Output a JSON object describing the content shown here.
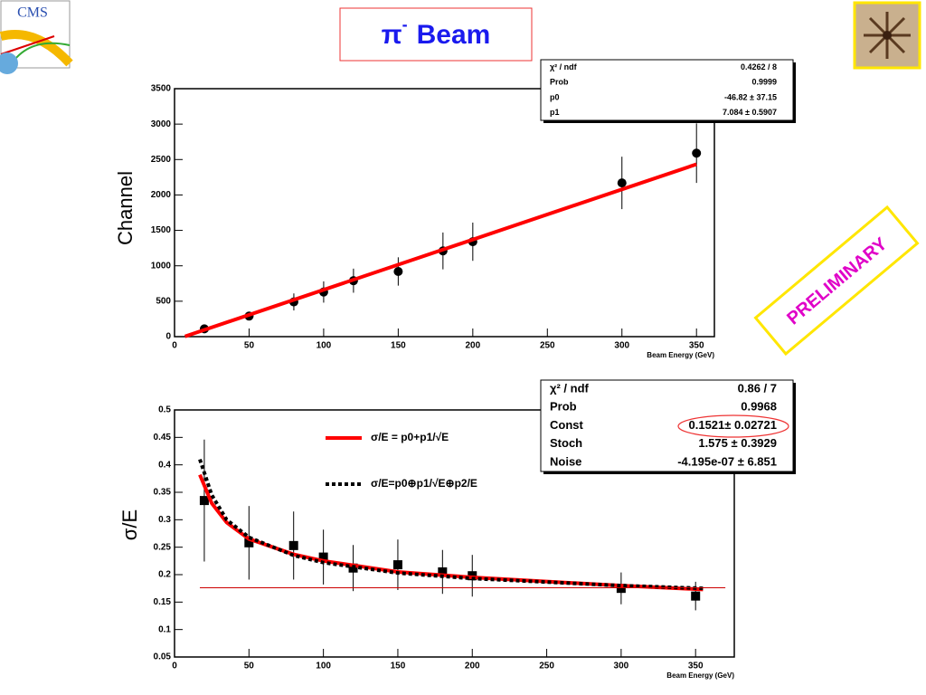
{
  "logo_text": "CMS",
  "title_symbol": "π",
  "title_sup": "-",
  "title_text": "Beam",
  "stamp": "PRELIMINARY",
  "chart_data": [
    {
      "type": "scatter",
      "x_label": "Beam Energy (GeV)",
      "y_label": "Channel",
      "xlim": [
        0,
        362
      ],
      "xticks": [
        0,
        50,
        100,
        150,
        200,
        250,
        300,
        350
      ],
      "ylim": [
        0,
        3500
      ],
      "yticks": [
        0,
        500,
        1000,
        1500,
        2000,
        2500,
        3000,
        3500
      ],
      "stats": [
        [
          "χ² / ndf",
          "0.4262 / 8"
        ],
        [
          "Prob",
          "0.9999"
        ],
        [
          "p0",
          "-46.82 ± 37.15"
        ],
        [
          "p1",
          "7.084 ± 0.5907"
        ]
      ],
      "series": [
        {
          "style": "markers",
          "marker": "circle",
          "color": "#000000",
          "x": [
            20,
            50,
            80,
            100,
            120,
            150,
            180,
            200,
            300,
            350
          ],
          "values": [
            110,
            290,
            490,
            630,
            790,
            920,
            1210,
            1340,
            2170,
            2590
          ],
          "errors": [
            60,
            60,
            120,
            150,
            170,
            200,
            260,
            270,
            370,
            420
          ]
        },
        {
          "style": "line",
          "color": "#ff0000",
          "x": [
            7,
            350
          ],
          "values": [
            3,
            2433
          ]
        }
      ]
    },
    {
      "type": "scatter",
      "x_label": "Beam Energy (GeV)",
      "y_label": "σ/E",
      "xlim": [
        0,
        376
      ],
      "xticks": [
        0,
        50,
        100,
        150,
        200,
        250,
        300,
        350
      ],
      "ylim": [
        0.05,
        0.5
      ],
      "yticks": [
        0.05,
        0.1,
        0.15,
        0.2,
        0.25,
        0.3,
        0.35,
        0.4,
        0.45,
        0.5
      ],
      "stats": [
        [
          "χ² / ndf",
          "0.86 / 7"
        ],
        [
          "Prob",
          "0.9968"
        ],
        [
          "Const",
          "0.1521± 0.02721"
        ],
        [
          "Stoch",
          "1.575 ± 0.3929"
        ],
        [
          "Noise",
          "-4.195e-07 ± 6.851"
        ]
      ],
      "series": [
        {
          "style": "markers",
          "marker": "square",
          "color": "#000000",
          "x": [
            20,
            50,
            80,
            100,
            120,
            150,
            180,
            200,
            300,
            350
          ],
          "values": [
            0.335,
            0.258,
            0.253,
            0.232,
            0.212,
            0.218,
            0.205,
            0.198,
            0.175,
            0.161
          ],
          "errors": [
            0.111,
            0.067,
            0.062,
            0.05,
            0.042,
            0.046,
            0.04,
            0.038,
            0.029,
            0.026
          ]
        },
        {
          "style": "line",
          "name": "σ/E = p0+p1/√E",
          "color": "#ff0000",
          "x": [
            17,
            25,
            35,
            50,
            80,
            100,
            150,
            200,
            300,
            355
          ],
          "values": [
            0.382,
            0.33,
            0.295,
            0.265,
            0.237,
            0.225,
            0.205,
            0.195,
            0.18,
            0.173
          ]
        },
        {
          "style": "dashed",
          "name": "σ/E=p0⊕p1/√E⊕p2/E",
          "color": "#000000",
          "x": [
            17,
            25,
            35,
            50,
            80,
            100,
            150,
            200,
            300,
            355
          ],
          "values": [
            0.41,
            0.345,
            0.3,
            0.268,
            0.235,
            0.222,
            0.203,
            0.193,
            0.18,
            0.175
          ]
        },
        {
          "style": "thin",
          "color": "#cc0000",
          "x": [
            17,
            370
          ],
          "values": [
            0.176,
            0.176
          ]
        }
      ]
    }
  ]
}
